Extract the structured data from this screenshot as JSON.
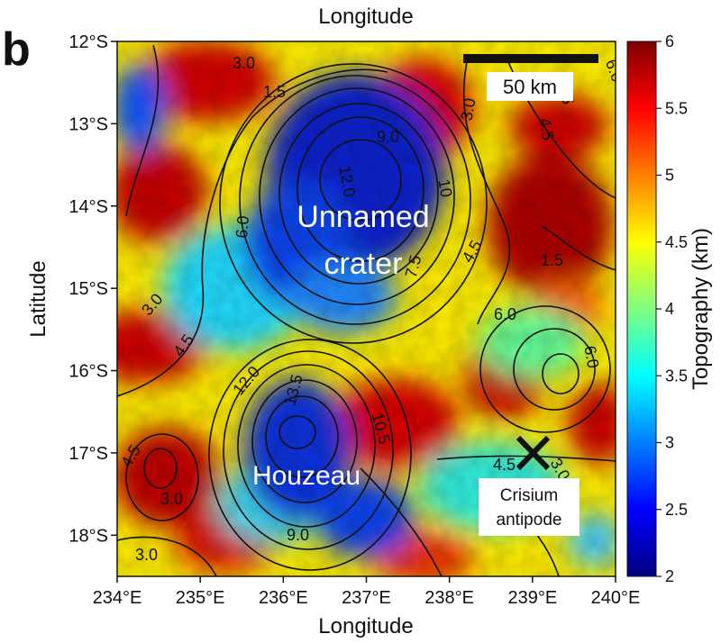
{
  "panel_label": "b",
  "top_axis_title": "Longitude",
  "x_axis_title": "Longitude",
  "y_axis_title": "Latitude",
  "x_ticks": [
    "234°E",
    "235°E",
    "236°E",
    "237°E",
    "238°E",
    "239°E",
    "240°E"
  ],
  "y_ticks": [
    "12°S",
    "13°S",
    "14°S",
    "15°S",
    "16°S",
    "17°S",
    "18°S"
  ],
  "colorbar": {
    "title": "Topography (km)",
    "ticks": [
      "6",
      "5.5",
      "5",
      "4.5",
      "4",
      "3.5",
      "3",
      "2.5",
      "2"
    ],
    "range": [
      2,
      6
    ],
    "colors": [
      "#00007f",
      "#0000ff",
      "#007fff",
      "#00ffff",
      "#7fff7f",
      "#ffff00",
      "#ff7f00",
      "#ff0000",
      "#7f0000"
    ]
  },
  "scale_bar": {
    "label": "50 km"
  },
  "regions": {
    "unnamed_line1": "Unnamed",
    "unnamed_line2": "crater",
    "houzeau": "Houzeau"
  },
  "antipode": {
    "line1": "Crisium",
    "line2": "antipode"
  },
  "contour_labels": [
    "3.0",
    "1.5",
    "9.0",
    "12.0",
    "10",
    "6.0",
    "7.5",
    "4.5",
    "3.0",
    "4.5",
    "1.5",
    "6.0",
    "6.0",
    "4.5",
    "6.0",
    "3.0",
    "12.0",
    "13.5",
    "10.5",
    "4.5",
    "3.0",
    "9.0",
    "3.0",
    "4.5",
    "3.0",
    "4.5"
  ]
}
